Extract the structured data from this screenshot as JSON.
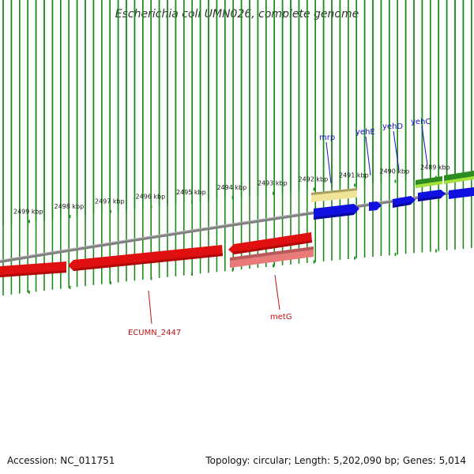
{
  "title": "Escherichia coli UMN026, complete genome",
  "footer": {
    "accession": "Accession: NC_011751",
    "summary": "Topology: circular; Length: 5,202,090 bp; Genes: 5,014"
  },
  "axis": {
    "unit": "kbp",
    "ticks": [
      {
        "label": "2499 kbp",
        "kbp": 2499
      },
      {
        "label": "2498 kbp",
        "kbp": 2498
      },
      {
        "label": "2497 kbp",
        "kbp": 2497
      },
      {
        "label": "2496 kbp",
        "kbp": 2496
      },
      {
        "label": "2495 kbp",
        "kbp": 2495
      },
      {
        "label": "2494 kbp",
        "kbp": 2494
      },
      {
        "label": "2493 kbp",
        "kbp": 2493
      },
      {
        "label": "2492 kbp",
        "kbp": 2492
      },
      {
        "label": "2491 kbp",
        "kbp": 2491
      },
      {
        "label": "2490 kbp",
        "kbp": 2490
      },
      {
        "label": "2489 kbp",
        "kbp": 2489
      }
    ]
  },
  "colors": {
    "forward_gene": "#1010e0",
    "reverse_gene": "#e01010",
    "reverse_shadow": "#e06a6a",
    "pale_gene": "#efe49a",
    "green_dark": "#2e8b1f",
    "green_light": "#a6e33a",
    "backbone": "#808080",
    "ticks": "#1a8c1a",
    "forward_label": "#1010c0",
    "reverse_label": "#c01010"
  },
  "genes": {
    "forward_labels": [
      "mrp",
      "yehE",
      "yehD",
      "yehC"
    ],
    "reverse_labels": [
      "metG",
      "ECUMN_2447"
    ]
  }
}
